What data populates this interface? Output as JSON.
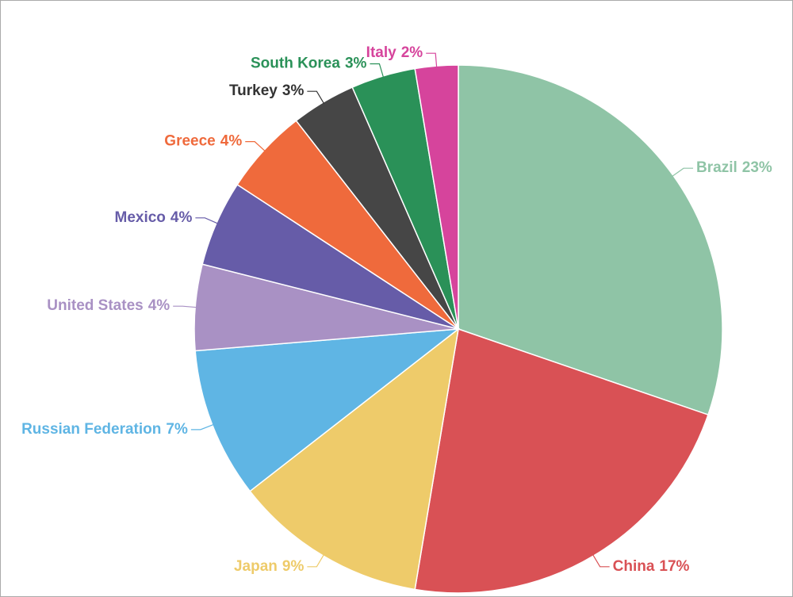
{
  "chart_data": {
    "type": "pie",
    "categories": [
      "Brazil",
      "China",
      "Japan",
      "Russian Federation",
      "United States",
      "Mexico",
      "Greece",
      "Turkey",
      "South Korea",
      "Italy"
    ],
    "values": [
      23,
      17,
      9,
      7,
      4,
      4,
      4,
      3,
      3,
      2
    ],
    "value_labels": [
      "23%",
      "17%",
      "9%",
      "7%",
      "4%",
      "4%",
      "4%",
      "3%",
      "3%",
      "2%"
    ],
    "colors": [
      "#8fc4a6",
      "#d95155",
      "#eecb6a",
      "#5fb5e4",
      "#a991c4",
      "#665ca8",
      "#ef6a3c",
      "#464646",
      "#2a9158",
      "#d6449c"
    ]
  }
}
